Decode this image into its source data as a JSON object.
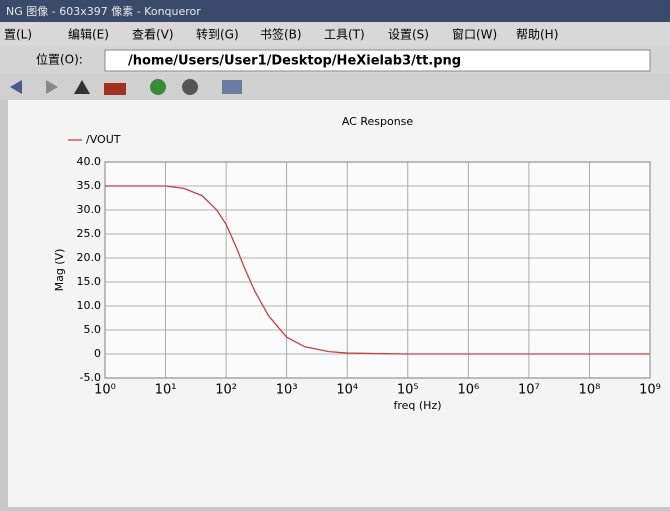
{
  "window": {
    "title": "NG 图像 - 603x397 像素 - Konqueror",
    "menu": [
      "置(L)",
      "编辑(E)",
      "查看(V)",
      "转到(G)",
      "书签(B)",
      "工具(T)",
      "设置(S)",
      "窗口(W)",
      "帮助(H)"
    ],
    "location_label": "位置(O):",
    "location": "/home/Users/User1/Desktop/HeXielab3/tt.png"
  },
  "chart_data": {
    "type": "line",
    "title": "AC Response",
    "xlabel": "freq (Hz)",
    "ylabel": "Mag (V)",
    "x": [
      1,
      3,
      10,
      20,
      40,
      70,
      100,
      150,
      200,
      300,
      500,
      1000,
      2000,
      5000,
      10000,
      100000,
      1000000,
      10000000,
      100000000,
      1000000000
    ],
    "series": [
      {
        "name": "/VOUT",
        "color": "#c8404a",
        "values": [
          35,
          35,
          35,
          34.5,
          33,
          30,
          27,
          22,
          18,
          13,
          8,
          3.5,
          1.5,
          0.5,
          0.2,
          0,
          0,
          0,
          0,
          0
        ]
      }
    ],
    "xscale": "log",
    "xlim": [
      1,
      1000000000
    ],
    "xticks": [
      {
        "value": 1,
        "label": "10⁰"
      },
      {
        "value": 10,
        "label": "10¹"
      },
      {
        "value": 100,
        "label": "10²"
      },
      {
        "value": 1000,
        "label": "10³"
      },
      {
        "value": 10000,
        "label": "10⁴"
      },
      {
        "value": 100000,
        "label": "10⁵"
      },
      {
        "value": 1000000,
        "label": "10⁶"
      },
      {
        "value": 10000000,
        "label": "10⁷"
      },
      {
        "value": 100000000,
        "label": "10⁸"
      },
      {
        "value": 1000000000,
        "label": "10⁹"
      }
    ],
    "ylim": [
      -5,
      40
    ],
    "yticks": [
      {
        "value": -5,
        "label": "-5.0"
      },
      0,
      {
        "value": 5,
        "label": "5.0"
      },
      {
        "value": 10,
        "label": "10.0"
      },
      {
        "value": 15,
        "label": "15.0"
      },
      {
        "value": 20,
        "label": "20.0"
      },
      {
        "value": 25,
        "label": "25.0"
      },
      {
        "value": 30,
        "label": "30.0"
      },
      {
        "value": 35,
        "label": "35.0"
      },
      {
        "value": 40,
        "label": "40.0"
      }
    ],
    "grid": true
  }
}
